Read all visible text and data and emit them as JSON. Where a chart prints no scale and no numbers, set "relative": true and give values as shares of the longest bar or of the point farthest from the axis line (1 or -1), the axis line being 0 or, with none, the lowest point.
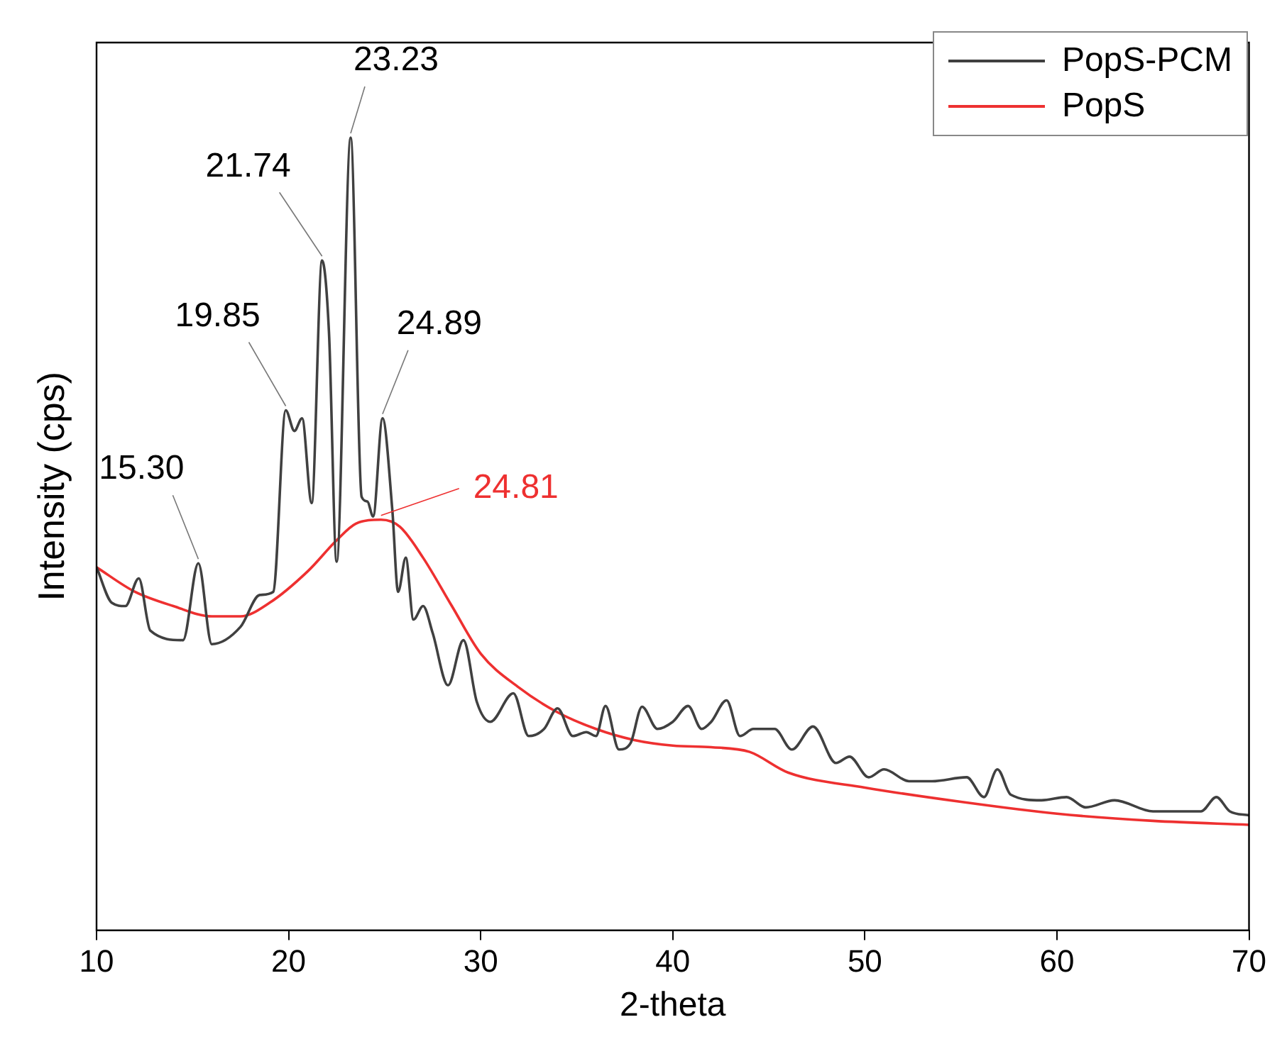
{
  "chart_data": {
    "type": "line",
    "xlabel": "2-theta",
    "ylabel": "Intensity (cps)",
    "relative": true,
    "xlim": [
      10,
      70
    ],
    "xticks": [
      10,
      20,
      30,
      40,
      50,
      60,
      70
    ],
    "grid": false,
    "legend": "top right",
    "marker": "none",
    "line_style": "solid",
    "series": [
      {
        "name": "PopS-PCM",
        "color": "#404040",
        "x": [
          10,
          10.8,
          11.5,
          12.2,
          12.8,
          14.5,
          15.3,
          16.0,
          17.5,
          18.5,
          19.2,
          19.85,
          20.3,
          20.7,
          21.2,
          21.74,
          22.1,
          22.5,
          23.23,
          23.8,
          24.1,
          24.4,
          24.89,
          25.4,
          25.7,
          26.1,
          26.5,
          27.0,
          27.5,
          28.3,
          29.1,
          29.8,
          30.5,
          31.7,
          32.5,
          33.3,
          34.0,
          34.8,
          35.5,
          36.0,
          36.5,
          37.2,
          37.8,
          38.4,
          39.2,
          40.0,
          40.8,
          41.5,
          42.0,
          42.8,
          43.5,
          44.2,
          45.3,
          46.2,
          47.3,
          48.5,
          49.2,
          50.2,
          51.0,
          52.3,
          53.5,
          55.3,
          56.2,
          56.9,
          57.6,
          59.2,
          60.5,
          61.5,
          63.0,
          65.0,
          67.5,
          68.3,
          69.0,
          70
        ],
        "values": [
          0.458,
          0.413,
          0.409,
          0.444,
          0.378,
          0.366,
          0.463,
          0.361,
          0.383,
          0.423,
          0.427,
          0.656,
          0.63,
          0.646,
          0.539,
          0.845,
          0.755,
          0.465,
          1,
          0.547,
          0.541,
          0.522,
          0.646,
          0.53,
          0.427,
          0.47,
          0.392,
          0.409,
          0.375,
          0.309,
          0.366,
          0.288,
          0.263,
          0.299,
          0.245,
          0.254,
          0.28,
          0.245,
          0.25,
          0.245,
          0.283,
          0.228,
          0.236,
          0.282,
          0.254,
          0.263,
          0.283,
          0.254,
          0.263,
          0.29,
          0.245,
          0.254,
          0.254,
          0.228,
          0.257,
          0.211,
          0.219,
          0.193,
          0.203,
          0.188,
          0.188,
          0.193,
          0.168,
          0.203,
          0.171,
          0.164,
          0.168,
          0.155,
          0.164,
          0.15,
          0.15,
          0.168,
          0.15,
          0.145
        ]
      },
      {
        "name": "PopS",
        "color": "#ee3030",
        "x": [
          10,
          12,
          14,
          16,
          17.5,
          19,
          21,
          22.5,
          23.5,
          24.81,
          25.8,
          27,
          28.5,
          30,
          32,
          34,
          36,
          38,
          40,
          42,
          44,
          46,
          50,
          55,
          60,
          65,
          70
        ],
        "values": [
          0.458,
          0.427,
          0.409,
          0.396,
          0.396,
          0.413,
          0.453,
          0.492,
          0.513,
          0.518,
          0.509,
          0.47,
          0.409,
          0.349,
          0.306,
          0.275,
          0.254,
          0.24,
          0.233,
          0.231,
          0.225,
          0.199,
          0.18,
          0.162,
          0.147,
          0.138,
          0.133
        ]
      }
    ],
    "annotations": [
      {
        "text": "15.30",
        "x": 15.3,
        "y": 0.463
      },
      {
        "text": "19.85",
        "x": 19.85,
        "y": 0.656
      },
      {
        "text": "21.74",
        "x": 21.74,
        "y": 0.845
      },
      {
        "text": "23.23",
        "x": 23.23,
        "y": 1
      },
      {
        "text": "24.89",
        "x": 24.89,
        "y": 0.646
      },
      {
        "text": "24.81",
        "x": 24.81,
        "y": 0.518
      }
    ]
  }
}
